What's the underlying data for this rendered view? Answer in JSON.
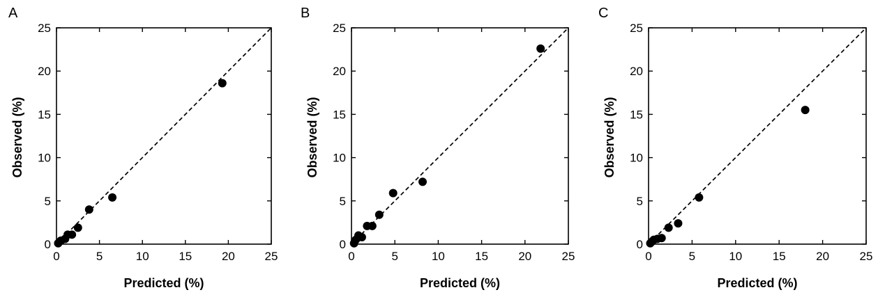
{
  "chart_data": [
    {
      "panel_label": "A",
      "type": "scatter",
      "xlabel": "Predicted (%)",
      "ylabel": "Observed (%)",
      "xlim": [
        0,
        25
      ],
      "ylim": [
        0,
        25
      ],
      "xticks": [
        "0",
        "5",
        "10",
        "15",
        "20",
        "25"
      ],
      "yticks": [
        "0",
        "5",
        "10",
        "15",
        "20",
        "25"
      ],
      "reference_line": "y = x",
      "grid": false,
      "points": [
        {
          "x": 0.2,
          "y": 0.1
        },
        {
          "x": 0.5,
          "y": 0.4
        },
        {
          "x": 1.0,
          "y": 0.6
        },
        {
          "x": 1.3,
          "y": 1.1
        },
        {
          "x": 1.8,
          "y": 1.1
        },
        {
          "x": 2.5,
          "y": 1.9
        },
        {
          "x": 3.8,
          "y": 4.0
        },
        {
          "x": 6.5,
          "y": 5.4
        },
        {
          "x": 19.3,
          "y": 18.6
        }
      ]
    },
    {
      "panel_label": "B",
      "type": "scatter",
      "xlabel": "Predicted (%)",
      "ylabel": "Observed (%)",
      "xlim": [
        0,
        25
      ],
      "ylim": [
        0,
        25
      ],
      "xticks": [
        "0",
        "5",
        "10",
        "15",
        "20",
        "25"
      ],
      "yticks": [
        "0",
        "5",
        "10",
        "15",
        "20",
        "25"
      ],
      "reference_line": "y = x",
      "grid": false,
      "points": [
        {
          "x": 0.3,
          "y": 0.1
        },
        {
          "x": 0.5,
          "y": 0.5
        },
        {
          "x": 0.8,
          "y": 1.0
        },
        {
          "x": 1.2,
          "y": 0.8
        },
        {
          "x": 1.8,
          "y": 2.1
        },
        {
          "x": 2.4,
          "y": 2.1
        },
        {
          "x": 3.2,
          "y": 3.4
        },
        {
          "x": 4.8,
          "y": 5.9
        },
        {
          "x": 8.2,
          "y": 7.2
        },
        {
          "x": 21.8,
          "y": 22.6
        }
      ]
    },
    {
      "panel_label": "C",
      "type": "scatter",
      "xlabel": "Predicted (%)",
      "ylabel": "Observed (%)",
      "xlim": [
        0,
        25
      ],
      "ylim": [
        0,
        25
      ],
      "xticks": [
        "0",
        "5",
        "10",
        "15",
        "20",
        "25"
      ],
      "yticks": [
        "0",
        "5",
        "10",
        "15",
        "20",
        "25"
      ],
      "reference_line": "y = x",
      "grid": false,
      "points": [
        {
          "x": 0.2,
          "y": 0.1
        },
        {
          "x": 0.4,
          "y": 0.3
        },
        {
          "x": 0.6,
          "y": 0.5
        },
        {
          "x": 1.0,
          "y": 0.6
        },
        {
          "x": 1.5,
          "y": 0.7
        },
        {
          "x": 2.3,
          "y": 1.9
        },
        {
          "x": 3.4,
          "y": 2.4
        },
        {
          "x": 5.8,
          "y": 5.4
        },
        {
          "x": 18.0,
          "y": 15.5
        }
      ]
    }
  ],
  "colors": {
    "points": "#000000",
    "axes": "#000000",
    "reference_line": "#000000"
  }
}
